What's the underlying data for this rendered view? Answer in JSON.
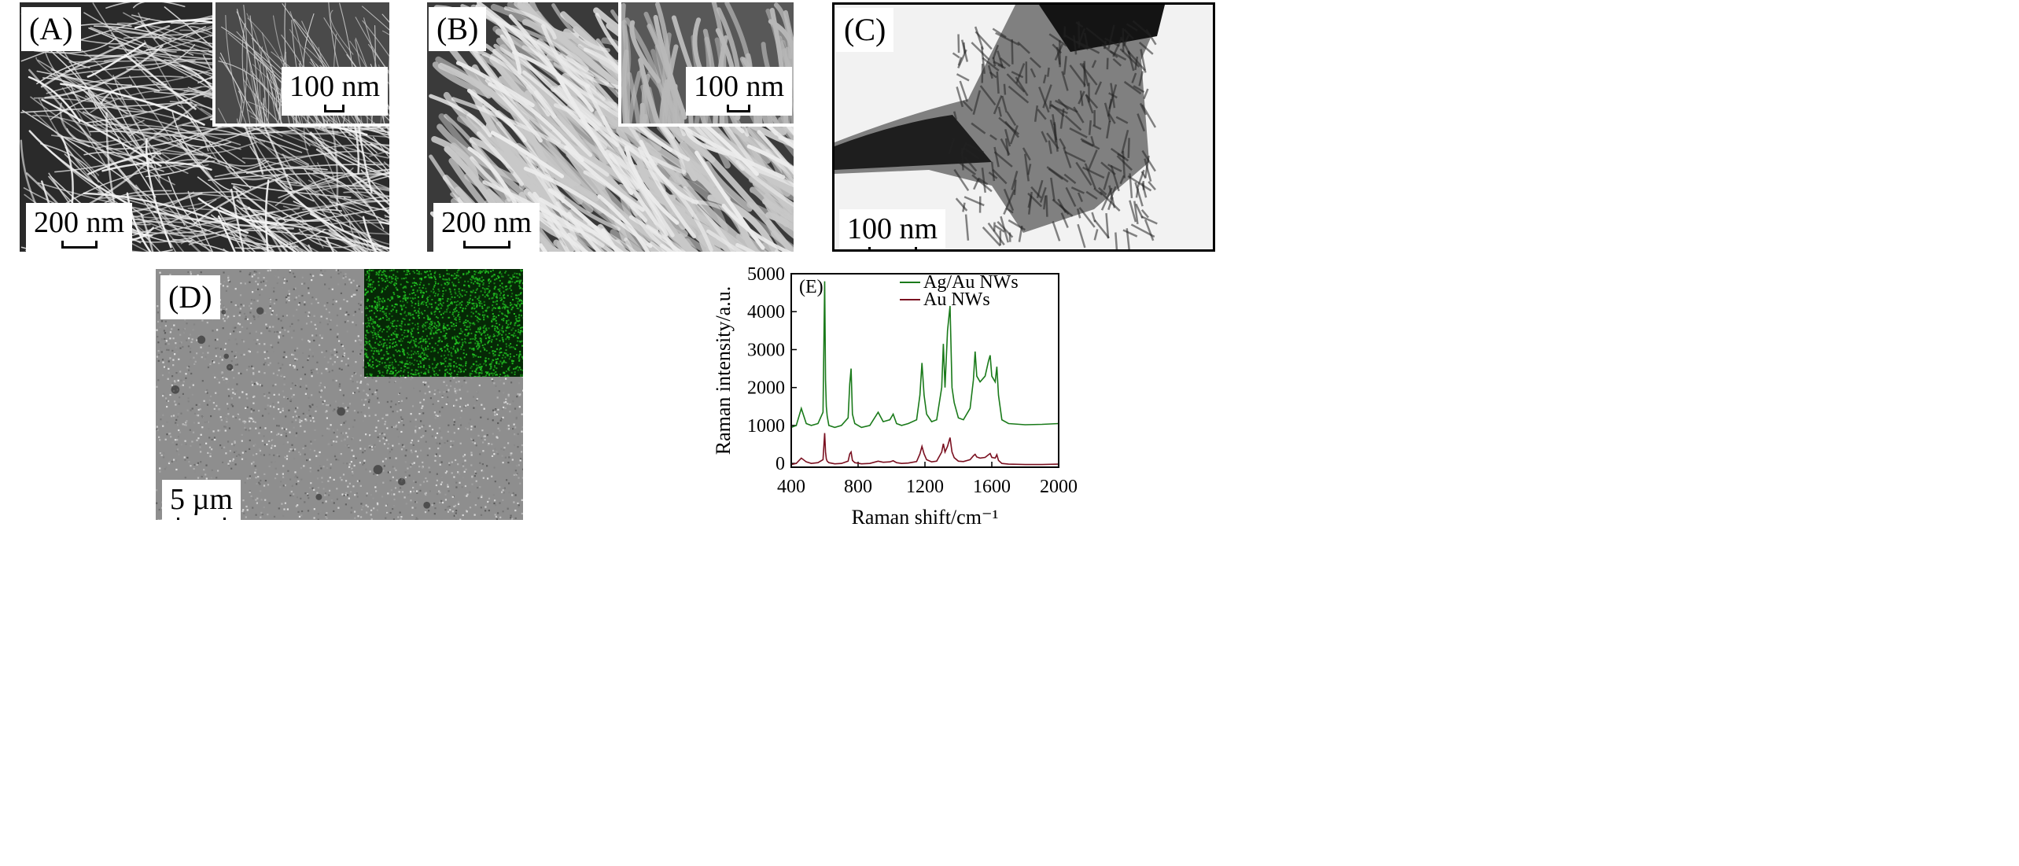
{
  "panels": {
    "a": {
      "label": "(A)",
      "scale": "200 nm",
      "inset_scale": "100 nm"
    },
    "b": {
      "label": "(B)",
      "scale": "200 nm",
      "inset_scale": "100 nm"
    },
    "c": {
      "label": "(C)",
      "scale": "100 nm"
    },
    "d": {
      "label": "(D)",
      "scale": "5 µm"
    },
    "e": {
      "label": "(E)"
    }
  },
  "colors": {
    "ag_au": "#1a7a1a",
    "au": "#7a1020",
    "eds_map": "#22c222"
  },
  "chart_data": {
    "type": "line",
    "title": "",
    "xlabel": "Raman shift/cm⁻¹",
    "ylabel": "Raman intensity/a.u.",
    "xlim": [
      400,
      2000
    ],
    "ylim": [
      -100,
      5000
    ],
    "xticks": [
      400,
      800,
      1200,
      1600,
      2000
    ],
    "yticks": [
      0,
      1000,
      2000,
      3000,
      4000,
      5000
    ],
    "legend": "top-right",
    "series": [
      {
        "name": "Ag/Au NWs",
        "x": [
          400,
          430,
          460,
          490,
          520,
          560,
          590,
          600,
          605,
          610,
          615,
          625,
          660,
          700,
          740,
          750,
          758,
          766,
          780,
          820,
          870,
          920,
          950,
          990,
          1010,
          1030,
          1060,
          1100,
          1150,
          1170,
          1182,
          1195,
          1210,
          1240,
          1270,
          1300,
          1310,
          1320,
          1335,
          1350,
          1362,
          1375,
          1400,
          1430,
          1470,
          1490,
          1500,
          1510,
          1530,
          1560,
          1580,
          1590,
          1600,
          1620,
          1630,
          1640,
          1660,
          1700,
          1800,
          1900,
          2000
        ],
        "y": [
          950,
          1000,
          1450,
          1050,
          1000,
          1050,
          1350,
          4800,
          2200,
          1500,
          1250,
          1000,
          950,
          1000,
          1200,
          2100,
          2500,
          1300,
          1050,
          950,
          1000,
          1350,
          1100,
          1150,
          1300,
          1050,
          1000,
          1050,
          1150,
          1800,
          2650,
          1800,
          1300,
          1100,
          1150,
          2000,
          3150,
          2000,
          3500,
          4150,
          2000,
          1600,
          1200,
          1150,
          1450,
          2200,
          2950,
          2300,
          2150,
          2300,
          2700,
          2850,
          2300,
          2150,
          2550,
          1800,
          1150,
          1050,
          1020,
          1030,
          1050
        ]
      },
      {
        "name": "Au NWs",
        "x": [
          400,
          430,
          460,
          490,
          520,
          560,
          590,
          600,
          605,
          610,
          615,
          625,
          660,
          700,
          740,
          750,
          758,
          766,
          780,
          820,
          870,
          920,
          950,
          990,
          1010,
          1030,
          1060,
          1100,
          1150,
          1170,
          1182,
          1195,
          1210,
          1240,
          1270,
          1300,
          1310,
          1320,
          1335,
          1350,
          1362,
          1375,
          1400,
          1430,
          1470,
          1490,
          1500,
          1510,
          1530,
          1560,
          1580,
          1590,
          1600,
          1620,
          1630,
          1640,
          1660,
          1700,
          1800,
          1900,
          2000
        ],
        "y": [
          -30,
          0,
          140,
          40,
          0,
          20,
          100,
          800,
          300,
          120,
          60,
          20,
          -10,
          0,
          60,
          250,
          300,
          80,
          20,
          -10,
          0,
          60,
          30,
          40,
          70,
          20,
          0,
          10,
          50,
          250,
          450,
          250,
          100,
          40,
          60,
          300,
          520,
          300,
          450,
          680,
          300,
          150,
          60,
          50,
          100,
          200,
          240,
          170,
          140,
          160,
          230,
          260,
          160,
          140,
          230,
          80,
          0,
          -20,
          -30,
          -30,
          -20
        ]
      }
    ]
  }
}
